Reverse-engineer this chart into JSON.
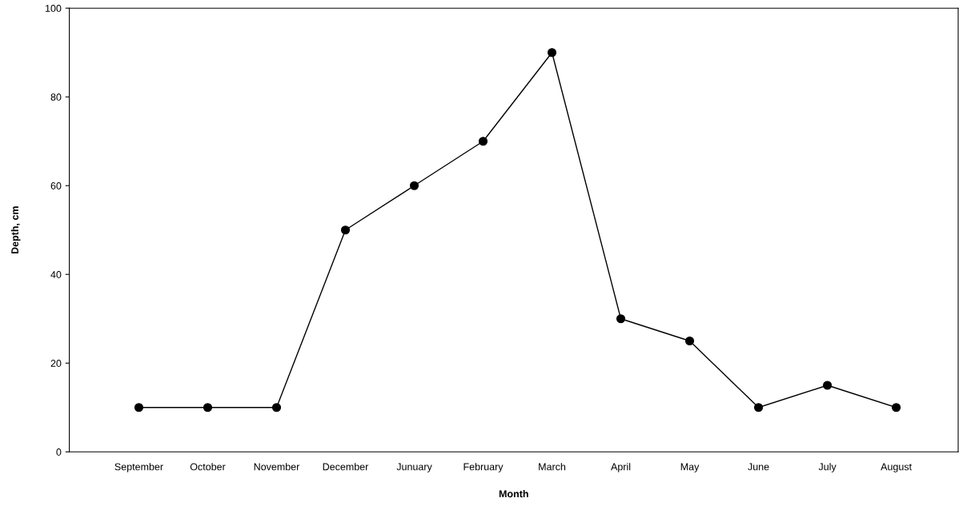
{
  "chart_data": {
    "type": "line",
    "xlabel": "Month",
    "ylabel": "Depth, cm",
    "categories": [
      "September",
      "October",
      "November",
      "December",
      "Junuary",
      "February",
      "March",
      "April",
      "May",
      "June",
      "July",
      "August"
    ],
    "series": [
      {
        "color": "#000000",
        "values": [
          10,
          10,
          10,
          50,
          60,
          70,
          90,
          30,
          25,
          10,
          15,
          10
        ]
      }
    ],
    "ylim": [
      0,
      100
    ],
    "yticks": [
      0,
      20,
      40,
      60,
      80,
      100
    ],
    "marker": "circle",
    "line_style": "solid",
    "grid": false,
    "legend": false
  }
}
